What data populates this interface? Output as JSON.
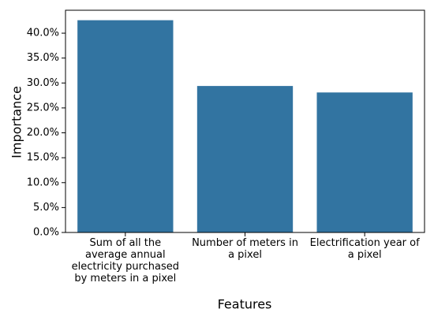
{
  "chart_data": {
    "type": "bar",
    "x_label": "Features",
    "y_label": "Importance",
    "categories": [
      "Sum of all the average annual electricity purchased by meters in a pixel",
      "Number of meters in a pixel",
      "Electrification year of a pixel"
    ],
    "values": [
      42.6,
      29.4,
      28.1
    ],
    "color": "#3274a1",
    "ylim": [
      0,
      44.6
    ],
    "yticks": [
      {
        "value": 0,
        "label": "0.0%"
      },
      {
        "value": 5,
        "label": "5.0%"
      },
      {
        "value": 10,
        "label": "10.0%"
      },
      {
        "value": 15,
        "label": "15.0%"
      },
      {
        "value": 20,
        "label": "20.0%"
      },
      {
        "value": 25,
        "label": "25.0%"
      },
      {
        "value": 30,
        "label": "30.0%"
      },
      {
        "value": 35,
        "label": "35.0%"
      },
      {
        "value": 40,
        "label": "40.0%"
      }
    ],
    "grid": false
  }
}
